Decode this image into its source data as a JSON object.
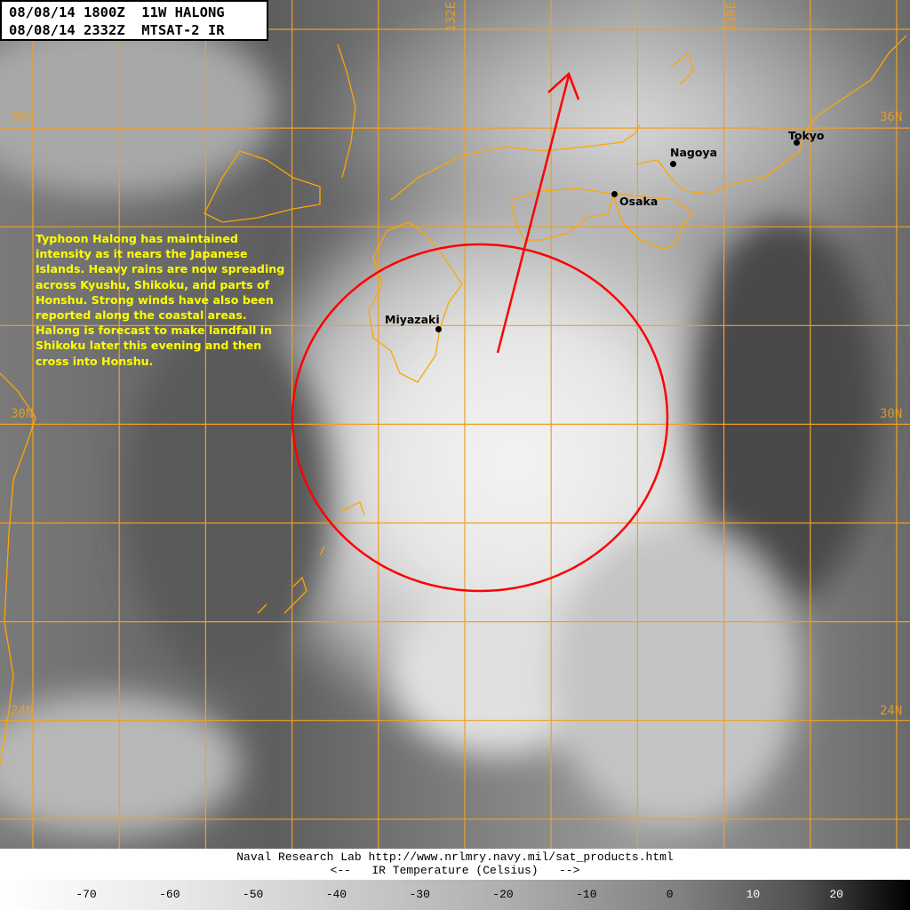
{
  "header": {
    "line1": "08/08/14 1800Z  11W HALONG",
    "line2": "08/08/14 2332Z  MTSAT-2 IR"
  },
  "annotation": "Typhoon Halong has maintained intensity as it nears the Japanese Islands. Heavy rains are now spreading across Kyushu, Shikoku, and parts of Honshu. Strong winds have also been reported along the coastal areas. Halong is forecast to make landfall in Shikoku later this evening and then cross into Honshu.",
  "cities": [
    {
      "name": "Miyazaki"
    },
    {
      "name": "Osaka"
    },
    {
      "name": "Nagoya"
    },
    {
      "name": "Tokyo"
    }
  ],
  "grid_labels": {
    "lon": [
      "132E",
      "138E"
    ],
    "lat": [
      "36N",
      "30N",
      "24N"
    ]
  },
  "footer": {
    "credit": "Naval Research Lab http://www.nrlmry.navy.mil/sat_products.html",
    "scale_title": "<--   IR Temperature (Celsius)   -->"
  },
  "colorbar": {
    "ticks": [
      "-70",
      "-60",
      "-50",
      "-40",
      "-30",
      "-20",
      "-10",
      "0",
      "10",
      "20"
    ]
  },
  "colors": {
    "grid": "#f0a020",
    "coastline": "#ffa500",
    "track": "#ff0000",
    "annotation_text": "#ffff00"
  },
  "icons": {
    "city_marker": "black-dot",
    "motion": "red-arrow",
    "wind_radius": "red-circle"
  }
}
